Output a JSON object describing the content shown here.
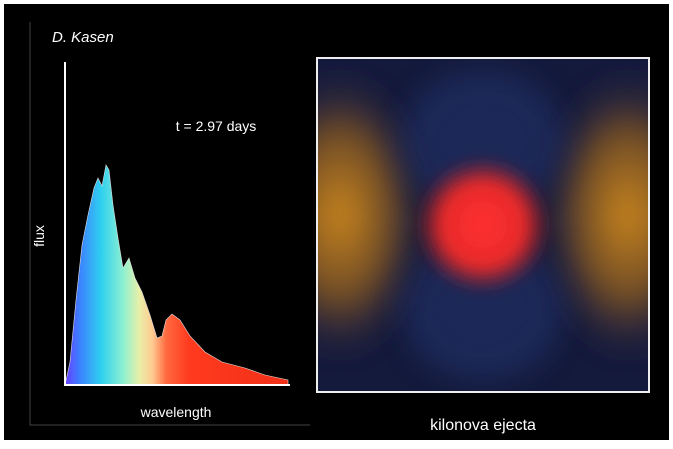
{
  "credit": "D. Kasen",
  "spectrum": {
    "time_label": "t = 2.97 days",
    "y_label": "flux",
    "x_label": "wavelength"
  },
  "image": {
    "caption": "kilonova ejecta"
  }
}
